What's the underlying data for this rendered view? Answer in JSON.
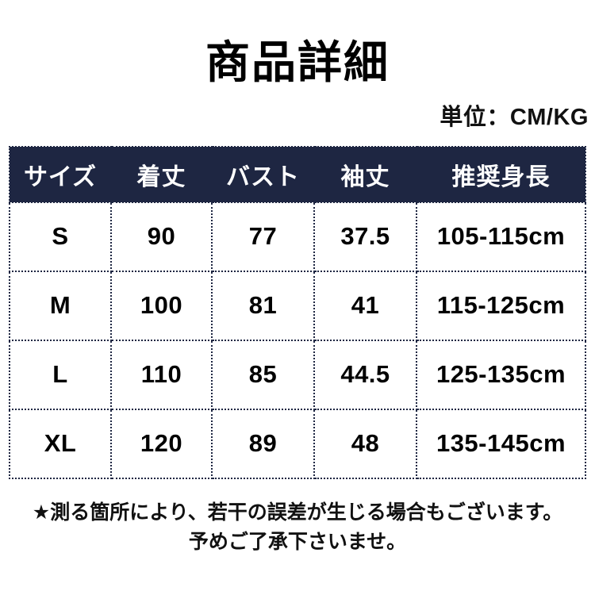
{
  "page": {
    "title": "商品詳細",
    "unit_label": "単位：CM/KG",
    "note_line1": "★測る箇所により、若干の誤差が生じる場合もございます。",
    "note_line2": "予めご了承下さいませ。"
  },
  "chart_data": {
    "type": "table",
    "title": "商品詳細",
    "unit": "CM/KG",
    "columns": [
      "サイズ",
      "着丈",
      "バスト",
      "袖丈",
      "推奨身長"
    ],
    "rows": [
      [
        "S",
        "90",
        "77",
        "37.5",
        "105-115cm"
      ],
      [
        "M",
        "100",
        "81",
        "41",
        "115-125cm"
      ],
      [
        "L",
        "110",
        "85",
        "44.5",
        "125-135cm"
      ],
      [
        "XL",
        "120",
        "89",
        "48",
        "135-145cm"
      ]
    ]
  },
  "colors": {
    "header_bg": "#1e2642",
    "header_text": "#ffffff",
    "body_text": "#000000",
    "border": "#1e2642",
    "page_bg": "#ffffff"
  }
}
